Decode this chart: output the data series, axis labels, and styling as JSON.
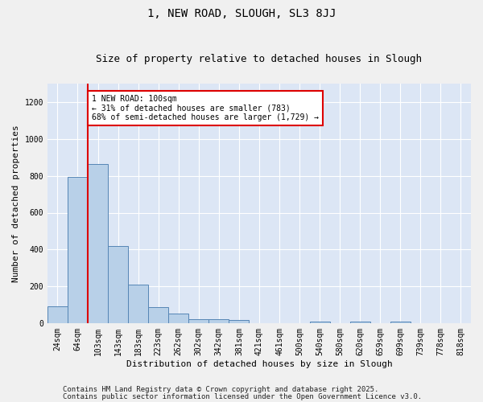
{
  "title1": "1, NEW ROAD, SLOUGH, SL3 8JJ",
  "title2": "Size of property relative to detached houses in Slough",
  "xlabel": "Distribution of detached houses by size in Slough",
  "ylabel": "Number of detached properties",
  "categories": [
    "24sqm",
    "64sqm",
    "103sqm",
    "143sqm",
    "183sqm",
    "223sqm",
    "262sqm",
    "302sqm",
    "342sqm",
    "381sqm",
    "421sqm",
    "461sqm",
    "500sqm",
    "540sqm",
    "580sqm",
    "620sqm",
    "659sqm",
    "699sqm",
    "739sqm",
    "778sqm",
    "818sqm"
  ],
  "values": [
    90,
    795,
    865,
    420,
    210,
    88,
    52,
    22,
    22,
    15,
    0,
    0,
    0,
    7,
    0,
    10,
    0,
    10,
    0,
    0,
    0
  ],
  "bar_color": "#b8d0e8",
  "bar_edge_color": "#5585b5",
  "vline_x": 2,
  "vline_color": "#dd0000",
  "annotation_text": "1 NEW ROAD: 100sqm\n← 31% of detached houses are smaller (783)\n68% of semi-detached houses are larger (1,729) →",
  "annotation_box_color": "#ffffff",
  "annotation_box_edge": "#dd0000",
  "ylim": [
    0,
    1300
  ],
  "yticks": [
    0,
    200,
    400,
    600,
    800,
    1000,
    1200
  ],
  "bg_color": "#dce6f5",
  "fig_bg_color": "#f0f0f0",
  "footer1": "Contains HM Land Registry data © Crown copyright and database right 2025.",
  "footer2": "Contains public sector information licensed under the Open Government Licence v3.0.",
  "title1_fontsize": 10,
  "title2_fontsize": 9,
  "axis_label_fontsize": 8,
  "tick_fontsize": 7,
  "annotation_fontsize": 7,
  "footer_fontsize": 6.5
}
